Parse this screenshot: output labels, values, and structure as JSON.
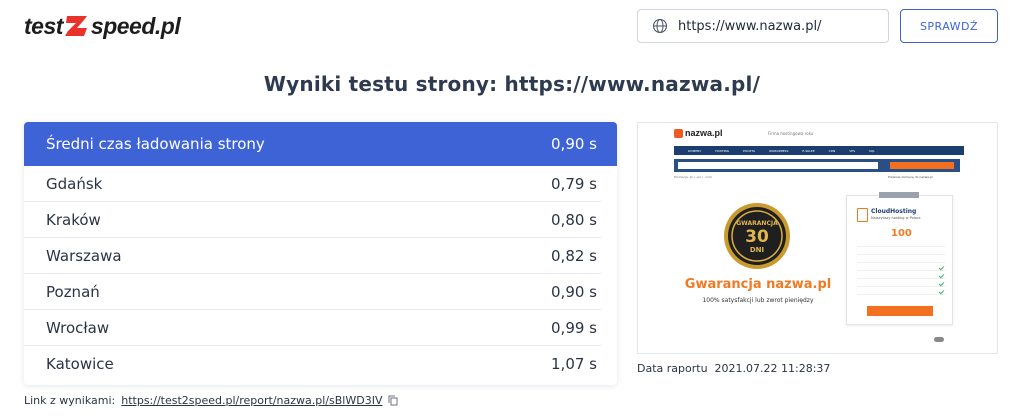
{
  "header": {
    "logo_left": "test",
    "logo_right": "speed.pl",
    "url_value": "https://www.nazwa.pl/",
    "check_label": "SPRAWDŹ"
  },
  "title": "Wyniki testu strony: https://www.nazwa.pl/",
  "results": {
    "avg_label": "Średni czas ładowania strony",
    "avg_value": "0,90 s",
    "rows": [
      {
        "city": "Gdańsk",
        "time": "0,79 s"
      },
      {
        "city": "Kraków",
        "time": "0,80 s"
      },
      {
        "city": "Warszawa",
        "time": "0,82 s"
      },
      {
        "city": "Poznań",
        "time": "0,90 s"
      },
      {
        "city": "Wrocław",
        "time": "0,99 s"
      },
      {
        "city": "Katowice",
        "time": "1,07 s"
      }
    ]
  },
  "link": {
    "label": "Link z wynikami:",
    "url": "https://test2speed.pl/report/nazwa.pl/sBlWD3IV"
  },
  "report": {
    "label": "Data raportu",
    "date": "2021.07.22 11:28:37"
  },
  "screenshot": {
    "logo": "nazwa.pl",
    "tagline": "Firma hostingowa roku",
    "nav": [
      "DOMENY",
      "HOSTING",
      "POCZTA",
      "WORDPRESS",
      "E-SKLEP",
      "CDN",
      "VPS",
      "SQL"
    ],
    "crumb": "Promocja .pl • .eu • .com",
    "right_note": "Przenieś domenę do nazwa.pl",
    "seal_line1": "GWARANCJA",
    "seal_line2": "30",
    "seal_line3": "DNI",
    "headline": "Gwarancja nazwa.pl",
    "subline": "100% satysfakcji lub zwrot pieniędzy",
    "offer_name": "CloudHosting",
    "offer_sub": "Najszybszy hosting w Polsce",
    "offer_price": "100"
  },
  "colors": {
    "accent": "#3d63d6",
    "orange": "#f07a22"
  }
}
